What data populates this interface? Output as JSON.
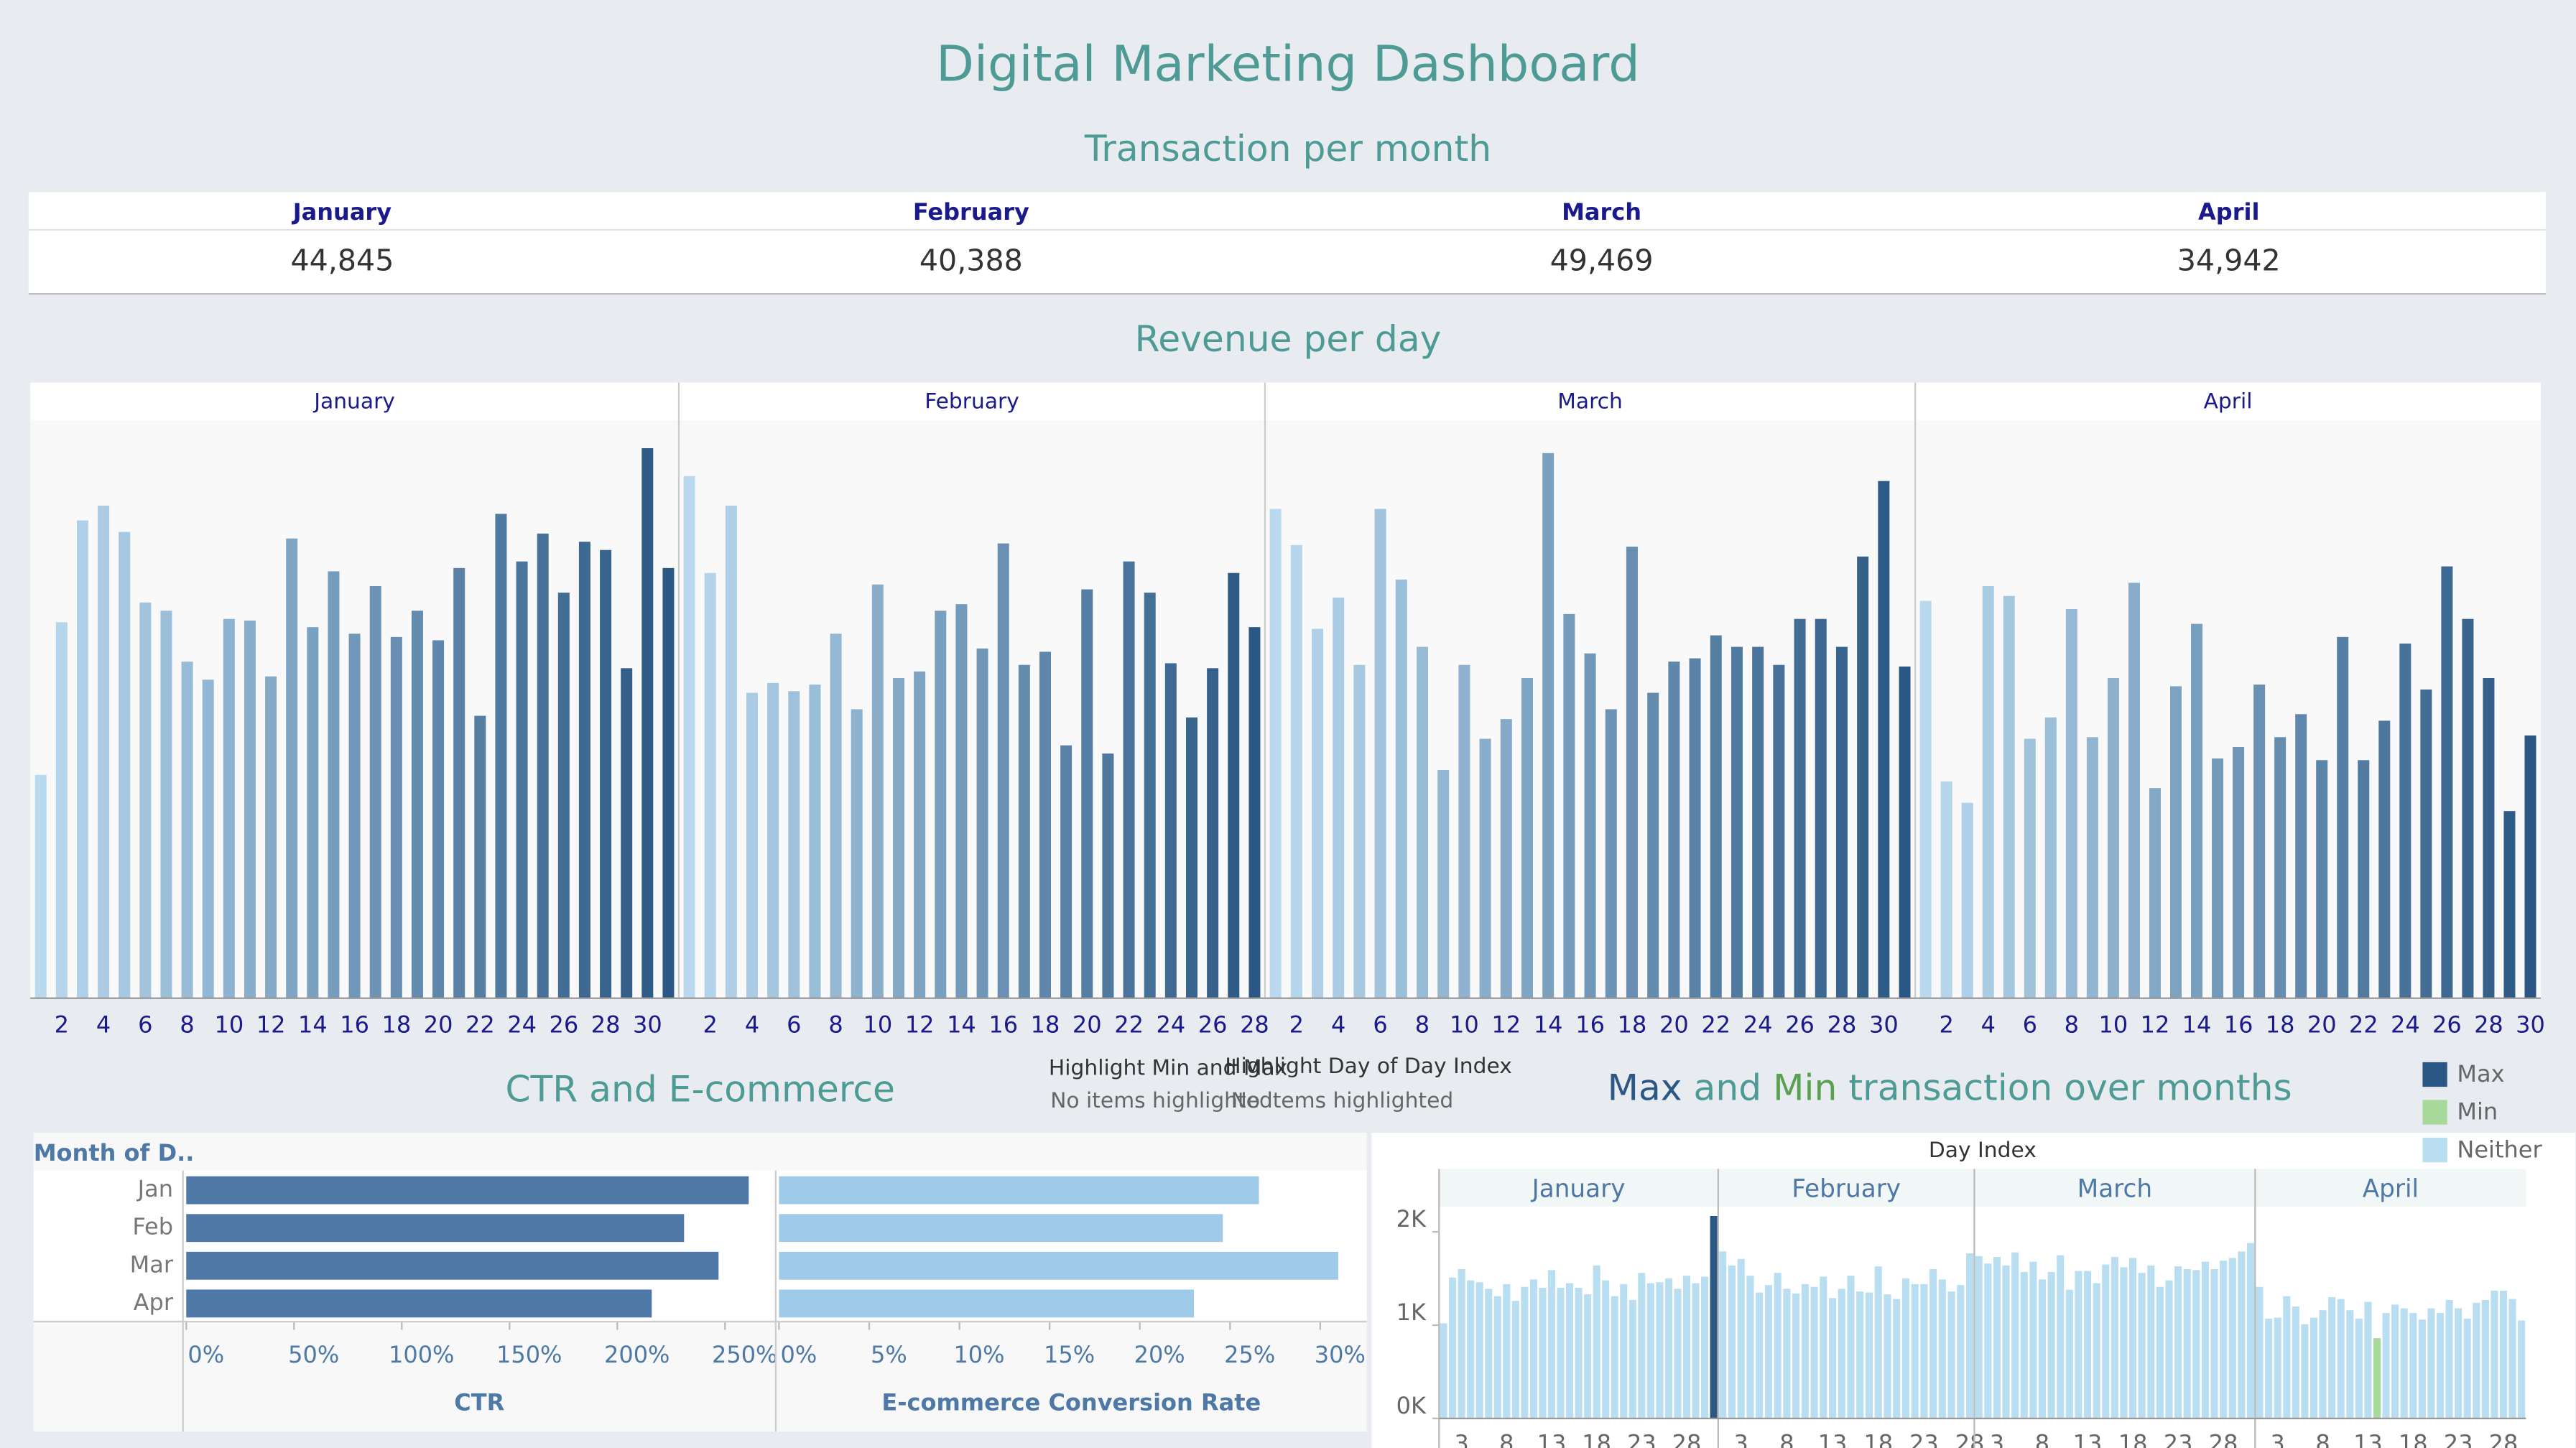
{
  "title": "Digital Marketing Dashboard",
  "transactions": {
    "title": "Transaction per month",
    "columns": [
      "January",
      "February",
      "March",
      "April"
    ],
    "values": [
      "44,845",
      "40,388",
      "49,469",
      "34,942"
    ]
  },
  "filters": [
    {
      "title": "Highlight Min and Max",
      "status": "No items highlighted"
    },
    {
      "title": "Highlight Day of Day Index",
      "status": "No items highlighted"
    }
  ],
  "chart_data": [
    {
      "type": "bar",
      "title": "Revenue per day",
      "color_range": [
        "#b9d9ef",
        "#2a5783"
      ],
      "ylim": [
        0,
        352
      ],
      "panels": [
        {
          "name": "January",
          "x": [
            1,
            2,
            3,
            4,
            5,
            6,
            7,
            8,
            9,
            10,
            11,
            12,
            13,
            14,
            15,
            16,
            17,
            18,
            19,
            20,
            21,
            22,
            23,
            24,
            25,
            26,
            27,
            28,
            29,
            30,
            31
          ],
          "values": [
            136,
            229,
            291,
            300,
            284,
            241,
            236,
            205,
            194,
            231,
            230,
            196,
            280,
            226,
            260,
            222,
            251,
            220,
            236,
            218,
            262,
            172,
            295,
            266,
            283,
            247,
            278,
            273,
            201,
            335,
            262
          ],
          "xticks": [
            2,
            4,
            6,
            8,
            10,
            12,
            14,
            16,
            18,
            20,
            22,
            24,
            26,
            28,
            30
          ]
        },
        {
          "name": "February",
          "x": [
            1,
            2,
            3,
            4,
            5,
            6,
            7,
            8,
            9,
            10,
            11,
            12,
            13,
            14,
            15,
            16,
            17,
            18,
            19,
            20,
            21,
            22,
            23,
            24,
            25,
            26,
            27,
            28
          ],
          "values": [
            318,
            259,
            300,
            186,
            192,
            187,
            191,
            222,
            176,
            252,
            195,
            199,
            236,
            240,
            213,
            277,
            203,
            211,
            154,
            249,
            149,
            266,
            247,
            204,
            171,
            201,
            259,
            226
          ],
          "xticks": [
            2,
            4,
            6,
            8,
            10,
            12,
            14,
            16,
            18,
            20,
            22,
            24,
            26,
            28
          ]
        },
        {
          "name": "March",
          "x": [
            1,
            2,
            3,
            4,
            5,
            6,
            7,
            8,
            9,
            10,
            11,
            12,
            13,
            14,
            15,
            16,
            17,
            18,
            19,
            20,
            21,
            22,
            23,
            24,
            25,
            26,
            27,
            28,
            29,
            30,
            31
          ],
          "values": [
            298,
            276,
            225,
            244,
            203,
            298,
            255,
            214,
            139,
            203,
            158,
            170,
            195,
            332,
            234,
            210,
            176,
            275,
            186,
            205,
            207,
            221,
            214,
            214,
            203,
            231,
            231,
            214,
            269,
            315,
            202
          ],
          "xticks": [
            2,
            4,
            6,
            8,
            10,
            12,
            14,
            16,
            18,
            20,
            22,
            24,
            26,
            28,
            30
          ]
        },
        {
          "name": "April",
          "x": [
            1,
            2,
            3,
            4,
            5,
            6,
            7,
            8,
            9,
            10,
            11,
            12,
            13,
            14,
            15,
            16,
            17,
            18,
            19,
            20,
            21,
            22,
            23,
            24,
            25,
            26,
            27,
            28,
            29,
            30
          ],
          "values": [
            242,
            132,
            119,
            251,
            245,
            158,
            171,
            237,
            159,
            195,
            253,
            128,
            190,
            228,
            146,
            153,
            191,
            159,
            173,
            145,
            220,
            145,
            169,
            216,
            188,
            263,
            231,
            195,
            114,
            160
          ],
          "xticks": [
            2,
            4,
            6,
            8,
            10,
            12,
            14,
            16,
            18,
            20,
            22,
            24,
            26,
            28,
            30
          ]
        }
      ]
    },
    {
      "type": "hbar",
      "title": "CTR and E-commerce",
      "row_header": "Month of D..",
      "categories": [
        "Jan",
        "Feb",
        "Mar",
        "Apr"
      ],
      "panels": [
        {
          "name": "CTR",
          "color": "#4e79a7",
          "values": [
            261,
            231,
            247,
            216
          ],
          "xlim": [
            0,
            272
          ],
          "xticks": [
            {
              "value": 0,
              "label": "0%"
            },
            {
              "value": 50,
              "label": "50%"
            },
            {
              "value": 100,
              "label": "100%"
            },
            {
              "value": 150,
              "label": "150%"
            },
            {
              "value": 200,
              "label": "200%"
            },
            {
              "value": 250,
              "label": "250%"
            }
          ]
        },
        {
          "name": "E-commerce Conversion Rate",
          "color": "#a0cbe8",
          "values": [
            26.6,
            24.6,
            31.0,
            23.0
          ],
          "xlim": [
            0,
            32.4
          ],
          "xticks": [
            {
              "value": 0,
              "label": "0%"
            },
            {
              "value": 5,
              "label": "5%"
            },
            {
              "value": 10,
              "label": "10%"
            },
            {
              "value": 15,
              "label": "15%"
            },
            {
              "value": 20,
              "label": "20%"
            },
            {
              "value": 25,
              "label": "25%"
            },
            {
              "value": 30,
              "label": "30%"
            }
          ]
        }
      ]
    },
    {
      "type": "bar",
      "title_parts": [
        "Max",
        "and",
        "Min",
        "transaction over months"
      ],
      "title_colors": [
        "#2a5783",
        "#4e9a94",
        "#59a14f",
        "#4e9a94"
      ],
      "header": "Day Index",
      "legend": [
        {
          "name": "Max",
          "color": "#2a5783"
        },
        {
          "name": "Min",
          "color": "#a6d99a"
        },
        {
          "name": "Neither",
          "color": "#b9ddf1"
        }
      ],
      "ylim": [
        0,
        2270
      ],
      "yticks": [
        {
          "value": 0,
          "label": "0K"
        },
        {
          "value": 1000,
          "label": "1K"
        },
        {
          "value": 2000,
          "label": "2K"
        }
      ],
      "panels": [
        {
          "name": "January",
          "values": [
            1020,
            1510,
            1600,
            1480,
            1460,
            1390,
            1310,
            1440,
            1260,
            1410,
            1490,
            1400,
            1590,
            1400,
            1450,
            1400,
            1330,
            1640,
            1480,
            1310,
            1440,
            1270,
            1560,
            1450,
            1460,
            1500,
            1390,
            1530,
            1450,
            1520,
            2170
          ],
          "xticks": [
            3,
            8,
            13,
            18,
            23,
            28
          ]
        },
        {
          "name": "February",
          "values": [
            1790,
            1640,
            1710,
            1530,
            1350,
            1430,
            1560,
            1390,
            1340,
            1440,
            1410,
            1520,
            1290,
            1390,
            1530,
            1360,
            1350,
            1630,
            1330,
            1280,
            1500,
            1440,
            1440,
            1600,
            1490,
            1360,
            1430,
            1770
          ],
          "xticks": [
            3,
            8,
            13,
            18,
            23,
            28
          ]
        },
        {
          "name": "March",
          "values": [
            1740,
            1660,
            1730,
            1640,
            1780,
            1570,
            1680,
            1490,
            1570,
            1750,
            1380,
            1580,
            1580,
            1450,
            1650,
            1730,
            1620,
            1720,
            1560,
            1640,
            1410,
            1480,
            1630,
            1600,
            1590,
            1680,
            1600,
            1690,
            1720,
            1790,
            1880
          ],
          "xticks": [
            3,
            8,
            13,
            18,
            23,
            28
          ]
        },
        {
          "name": "April",
          "values": [
            1410,
            1070,
            1080,
            1310,
            1200,
            1010,
            1080,
            1160,
            1300,
            1280,
            1160,
            1070,
            1250,
            860,
            1130,
            1220,
            1180,
            1130,
            1060,
            1180,
            1130,
            1270,
            1180,
            1070,
            1240,
            1270,
            1370,
            1370,
            1280,
            1050
          ],
          "xticks": [
            3,
            8,
            13,
            18,
            23,
            28
          ]
        }
      ]
    }
  ]
}
